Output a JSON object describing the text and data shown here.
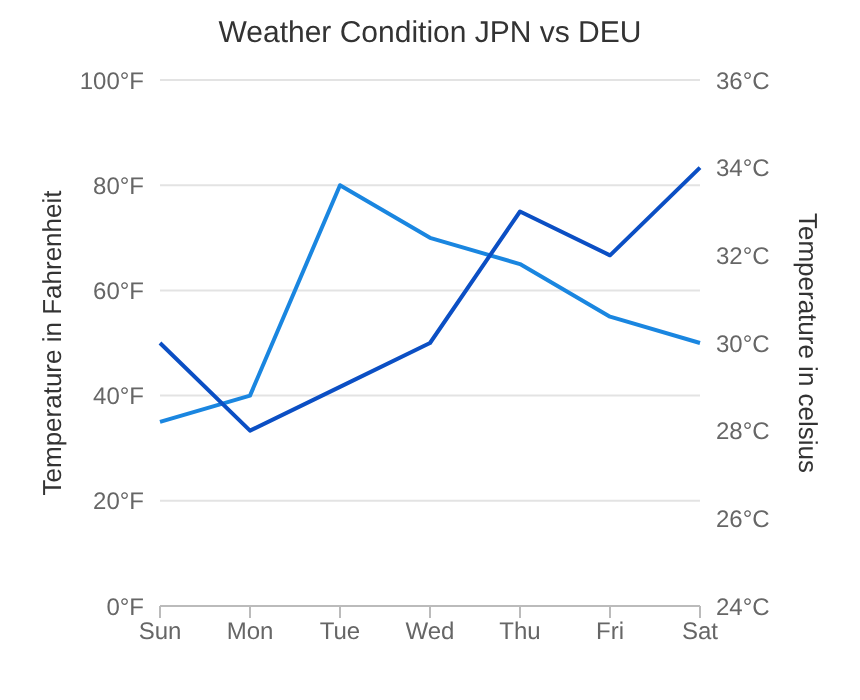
{
  "chart_data": {
    "type": "line",
    "title": "Weather Condition JPN vs DEU",
    "ylabel": "Temperature in Fahrenheit",
    "y2label": "Temperature in celsius",
    "categories": [
      "Sun",
      "Mon",
      "Tue",
      "Wed",
      "Thu",
      "Fri",
      "Sat"
    ],
    "series": [
      {
        "color": "#1a86e0",
        "values": [
          35,
          40,
          80,
          70,
          65,
          55,
          50
        ]
      },
      {
        "color": "#0b4fc4",
        "axis": "y2",
        "values": [
          30,
          28,
          29,
          30,
          33,
          32,
          34
        ]
      }
    ],
    "ylim": [
      0,
      100
    ],
    "yticks": [
      {
        "value": 0,
        "label": "0°F"
      },
      {
        "value": 20,
        "label": "20°F"
      },
      {
        "value": 40,
        "label": "40°F"
      },
      {
        "value": 60,
        "label": "60°F"
      },
      {
        "value": 80,
        "label": "80°F"
      },
      {
        "value": 100,
        "label": "100°F"
      }
    ],
    "y2lim": [
      24,
      36
    ],
    "y2ticks": [
      {
        "value": 24,
        "label": "24°C"
      },
      {
        "value": 26,
        "label": "26°C"
      },
      {
        "value": 28,
        "label": "28°C"
      },
      {
        "value": 30,
        "label": "30°C"
      },
      {
        "value": 32,
        "label": "32°C"
      },
      {
        "value": 34,
        "label": "34°C"
      },
      {
        "value": 36,
        "label": "36°C"
      }
    ],
    "grid": "y",
    "legend": false,
    "marker": "none",
    "line_style": "solid"
  }
}
